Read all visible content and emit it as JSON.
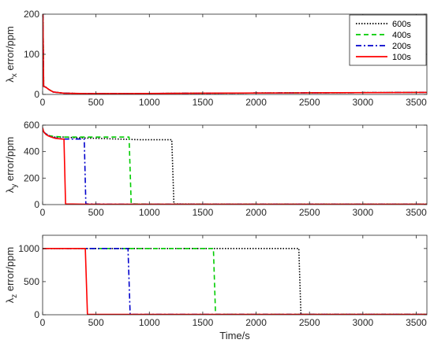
{
  "chart_data": [
    {
      "type": "line",
      "ylabel_symbol": "λ",
      "ylabel_sub": "x",
      "ylabel_rest": " error/ppm",
      "xlim": [
        0,
        3600
      ],
      "ylim": [
        0,
        200
      ],
      "xticks": [
        0,
        500,
        1000,
        1500,
        2000,
        2500,
        3000,
        3500
      ],
      "yticks": [
        0,
        100,
        200
      ],
      "legend": {
        "position": "top-right"
      },
      "series": [
        {
          "name": "600s",
          "color": "#000000",
          "style": "dotted",
          "x": [
            0,
            3,
            10,
            30,
            60,
            100,
            200,
            400,
            800,
            1500,
            2500,
            3600
          ],
          "y": [
            200,
            200,
            20,
            18,
            12,
            6,
            3,
            2,
            2,
            3,
            4,
            5
          ]
        },
        {
          "name": "400s",
          "color": "#00cc00",
          "style": "dashed",
          "x": [
            0,
            3,
            10,
            30,
            60,
            100,
            200,
            400,
            800,
            1500,
            2500,
            3600
          ],
          "y": [
            200,
            200,
            20,
            18,
            12,
            6,
            3,
            2,
            2,
            3,
            4,
            5
          ]
        },
        {
          "name": "200s",
          "color": "#0000cc",
          "style": "dashdot",
          "x": [
            0,
            3,
            10,
            30,
            60,
            100,
            200,
            400,
            800,
            1500,
            2500,
            3600
          ],
          "y": [
            200,
            200,
            20,
            18,
            12,
            6,
            3,
            2,
            2,
            3,
            4,
            5
          ]
        },
        {
          "name": "100s",
          "color": "#ff0000",
          "style": "solid",
          "x": [
            0,
            3,
            10,
            30,
            60,
            100,
            200,
            400,
            800,
            1500,
            2500,
            3600
          ],
          "y": [
            200,
            200,
            20,
            18,
            12,
            6,
            3,
            2,
            2,
            3,
            4,
            5
          ]
        }
      ]
    },
    {
      "type": "line",
      "ylabel_symbol": "λ",
      "ylabel_sub": "y",
      "ylabel_rest": " error/ppm",
      "xlim": [
        0,
        3600
      ],
      "ylim": [
        0,
        600
      ],
      "xticks": [
        0,
        500,
        1000,
        1500,
        2000,
        2500,
        3000,
        3500
      ],
      "yticks": [
        0,
        200,
        400,
        600
      ],
      "series": [
        {
          "name": "600s",
          "color": "#000000",
          "style": "dotted",
          "x": [
            0,
            20,
            60,
            100,
            200,
            300,
            500,
            700,
            900,
            1210,
            1230,
            1500,
            3600
          ],
          "y": [
            560,
            540,
            520,
            510,
            510,
            505,
            500,
            495,
            490,
            490,
            5,
            3,
            3
          ]
        },
        {
          "name": "400s",
          "color": "#00cc00",
          "style": "dashed",
          "x": [
            0,
            20,
            60,
            100,
            200,
            400,
            600,
            810,
            830,
            1000,
            3600
          ],
          "y": [
            560,
            540,
            520,
            515,
            510,
            510,
            510,
            510,
            5,
            3,
            3
          ]
        },
        {
          "name": "200s",
          "color": "#0000cc",
          "style": "dashdot",
          "x": [
            0,
            20,
            60,
            100,
            150,
            200,
            300,
            390,
            405,
            600,
            3600
          ],
          "y": [
            560,
            540,
            520,
            505,
            500,
            495,
            495,
            495,
            5,
            3,
            3
          ]
        },
        {
          "name": "100s",
          "color": "#ff0000",
          "style": "solid",
          "x": [
            0,
            10,
            30,
            50,
            80,
            120,
            180,
            200,
            215,
            400,
            3600
          ],
          "y": [
            580,
            550,
            530,
            520,
            510,
            500,
            495,
            495,
            5,
            3,
            3
          ]
        }
      ]
    },
    {
      "type": "line",
      "ylabel_symbol": "λ",
      "ylabel_sub": "z",
      "ylabel_rest": " error/ppm",
      "xlabel": "Time/s",
      "xlim": [
        0,
        3600
      ],
      "ylim": [
        0,
        1200
      ],
      "xticks": [
        0,
        500,
        1000,
        1500,
        2000,
        2500,
        3000,
        3500
      ],
      "yticks": [
        0,
        500,
        1000
      ],
      "series": [
        {
          "name": "600s",
          "color": "#000000",
          "style": "dotted",
          "x": [
            0,
            2400,
            2420,
            3600
          ],
          "y": [
            1000,
            1000,
            5,
            5
          ]
        },
        {
          "name": "400s",
          "color": "#00cc00",
          "style": "dashed",
          "x": [
            0,
            1600,
            1620,
            3600
          ],
          "y": [
            1000,
            1000,
            5,
            5
          ]
        },
        {
          "name": "200s",
          "color": "#0000cc",
          "style": "dashdot",
          "x": [
            0,
            800,
            820,
            3600
          ],
          "y": [
            1000,
            1000,
            5,
            5
          ]
        },
        {
          "name": "100s",
          "color": "#ff0000",
          "style": "solid",
          "x": [
            0,
            400,
            420,
            3600
          ],
          "y": [
            1000,
            1000,
            5,
            5
          ]
        }
      ]
    }
  ]
}
